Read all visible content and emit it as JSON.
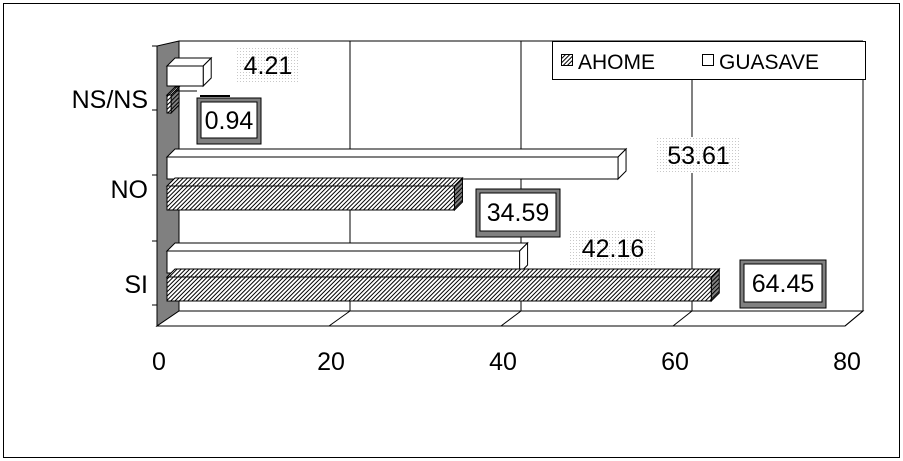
{
  "chart_data": {
    "type": "bar",
    "orientation": "horizontal",
    "style": "3d",
    "categories": [
      "NS/NS",
      "NO",
      "SI"
    ],
    "series": [
      {
        "name": "AHOME",
        "values": [
          0.94,
          34.59,
          64.45
        ],
        "pattern": "diagonal-hatch"
      },
      {
        "name": "GUASAVE",
        "values": [
          4.21,
          53.61,
          42.16
        ],
        "pattern": "solid-white"
      }
    ],
    "data_labels": {
      "AHOME": [
        "0.94",
        "34.59",
        "64.45"
      ],
      "GUASAVE": [
        "4.21",
        "53.61",
        "42.16"
      ]
    },
    "x_ticks": [
      "0",
      "20",
      "40",
      "60",
      "80"
    ],
    "xlim": [
      0,
      80
    ],
    "grid": "vertical",
    "legend": "top-right",
    "title": "",
    "xlabel": "",
    "ylabel": ""
  },
  "colors": {
    "outline": "#000000",
    "wall": "#808080",
    "floor": "#c0c0c0",
    "gridline": "#000000",
    "background": "#ffffff"
  }
}
